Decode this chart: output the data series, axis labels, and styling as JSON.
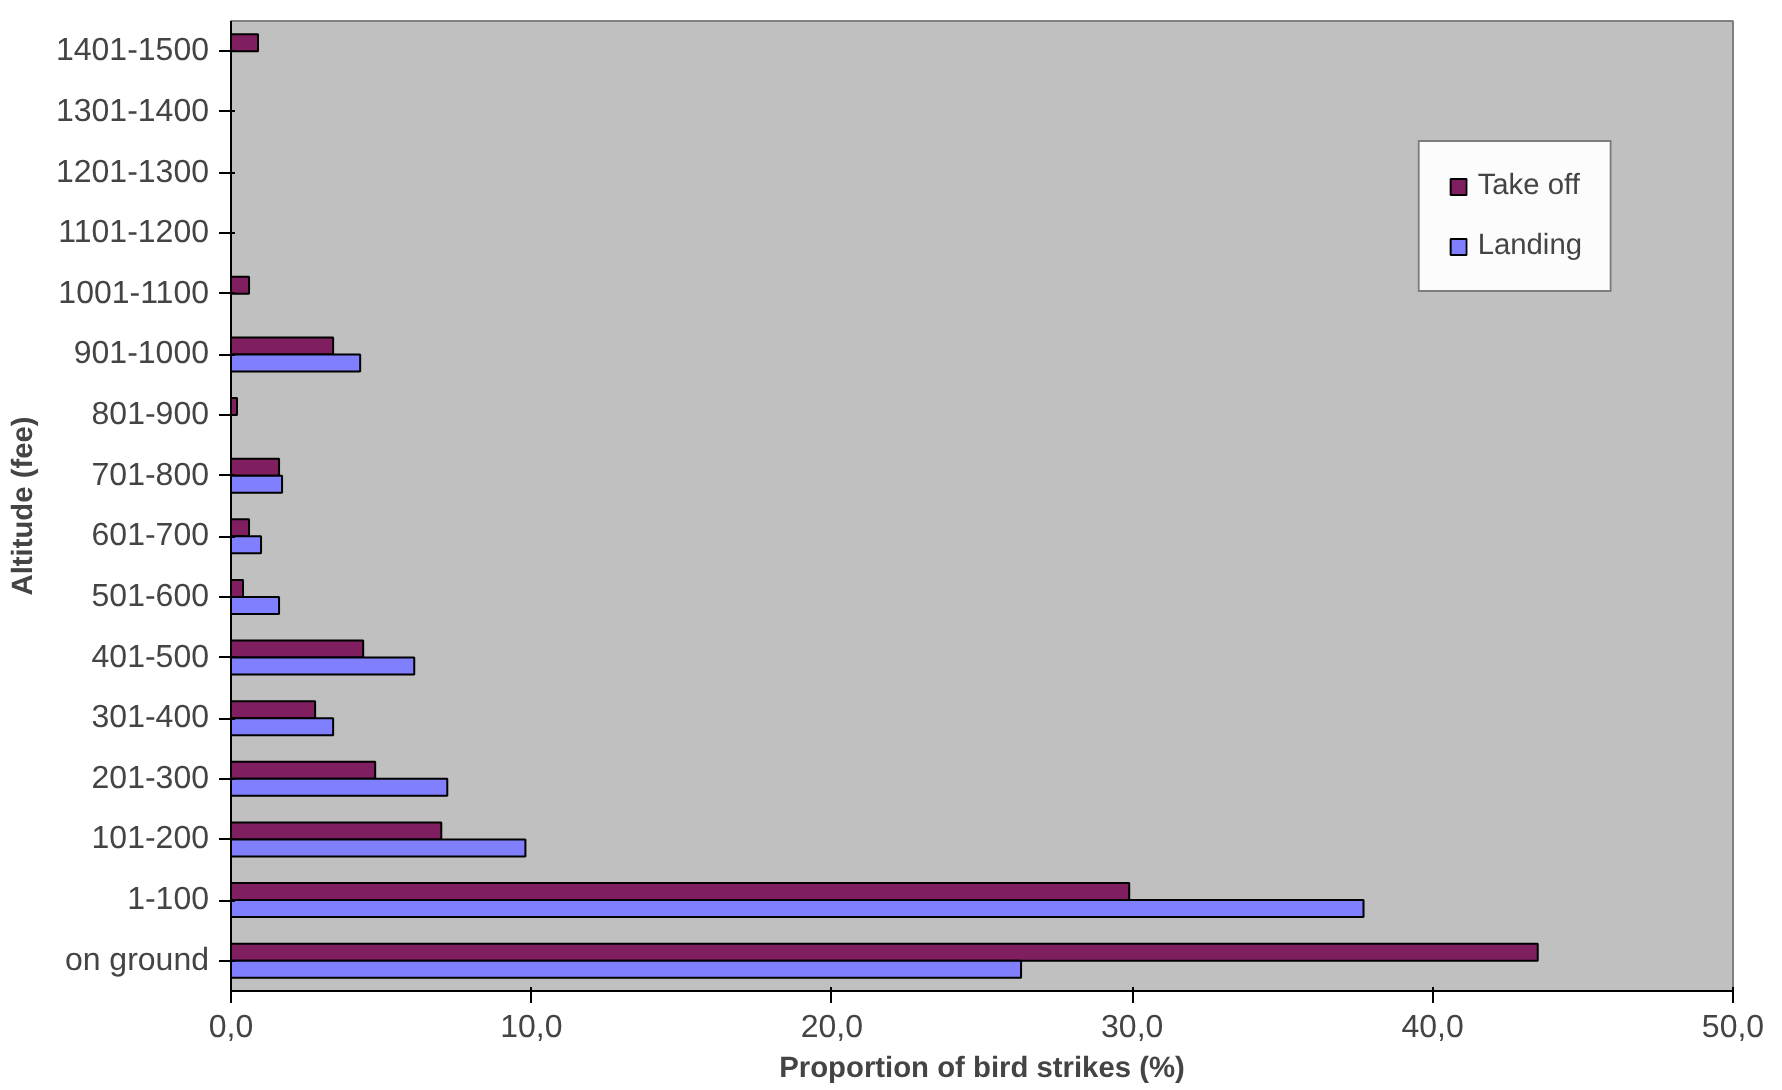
{
  "chart_data": {
    "type": "bar",
    "orientation": "horizontal",
    "xlabel": "Proportion of bird strikes (%)",
    "ylabel": "Altitude (fee)",
    "categories": [
      "1401-1500",
      "1301-1400",
      "1201-1300",
      "1101-1200",
      "1001-1100",
      "901-1000",
      "801-900",
      "701-800",
      "601-700",
      "501-600",
      "401-500",
      "301-400",
      "201-300",
      "101-200",
      "1-100",
      "on ground"
    ],
    "series": [
      {
        "name": "Take off",
        "color": "#7f1f5f",
        "values": [
          0.9,
          null,
          null,
          null,
          0.6,
          3.4,
          0.2,
          1.6,
          0.6,
          0.4,
          4.4,
          2.8,
          4.8,
          7.0,
          29.9,
          43.5
        ]
      },
      {
        "name": "Landing",
        "color": "#8080ff",
        "values": [
          null,
          null,
          null,
          null,
          null,
          4.3,
          null,
          1.7,
          1.0,
          1.6,
          6.1,
          3.4,
          7.2,
          9.8,
          37.7,
          26.3
        ]
      }
    ],
    "xlim": [
      0,
      50
    ],
    "xticks": [
      {
        "value": 0,
        "label": "0,0"
      },
      {
        "value": 10,
        "label": "10,0"
      },
      {
        "value": 20,
        "label": "20,0"
      },
      {
        "value": 30,
        "label": "30,0"
      },
      {
        "value": 40,
        "label": "40,0"
      },
      {
        "value": 50,
        "label": "50,0"
      }
    ],
    "grid": false,
    "legend": "top right"
  }
}
